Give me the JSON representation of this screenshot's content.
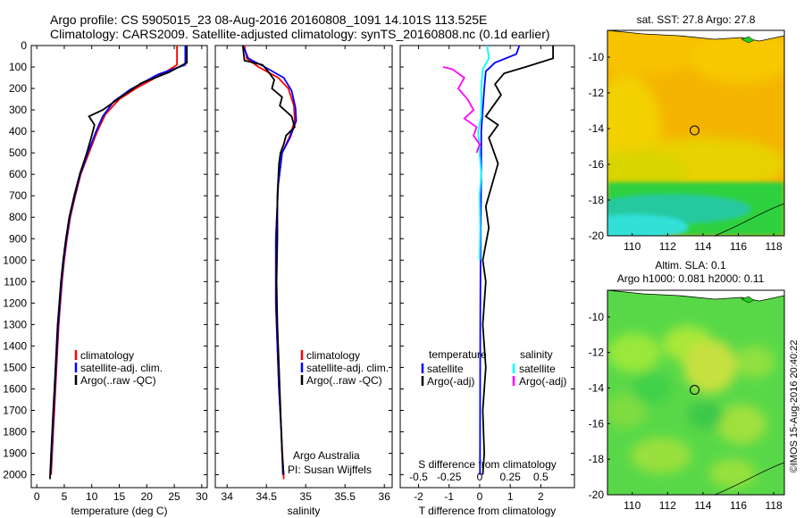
{
  "header": {
    "title_line1": "Argo profile: CS 5905015_23 08-Aug-2016 20160808_1091 14.101S 113.525E",
    "title_line2": "Climatology: CARS2009. Satellite-adjusted climatology: synTS_20160808.nc (0.1d earlier)"
  },
  "credit": "©IMOS 15-Aug-2016 20:40:22",
  "colors": {
    "climatology": "#ff0000",
    "satellite": "#0000ff",
    "argo": "#000000",
    "sal_satellite": "#00ffff",
    "sal_argo": "#ff00ff"
  },
  "chart_data": [
    {
      "id": "temperature",
      "type": "line",
      "xlabel": "temperature (deg C)",
      "ylabel": "",
      "xlim": [
        -1,
        31
      ],
      "ylim": [
        2060,
        0
      ],
      "xticks": [
        0,
        5,
        10,
        15,
        20,
        25,
        30
      ],
      "yticks": [
        0,
        100,
        200,
        300,
        400,
        500,
        600,
        700,
        800,
        900,
        1000,
        1100,
        1200,
        1300,
        1400,
        1500,
        1600,
        1700,
        1800,
        1900,
        2000
      ],
      "legend": {
        "placement": "center-left",
        "entries": [
          "climatology",
          "satellite-adj. clim.",
          "Argo(..raw -QC)"
        ]
      },
      "series": [
        {
          "name": "climatology",
          "color": "#ff0000",
          "points": [
            [
              25.5,
              0
            ],
            [
              25.5,
              90
            ],
            [
              23,
              130
            ],
            [
              18,
              200
            ],
            [
              15,
              250
            ],
            [
              12.5,
              320
            ],
            [
              11,
              400
            ],
            [
              9.5,
              500
            ],
            [
              8,
              600
            ],
            [
              7,
              700
            ],
            [
              6.1,
              800
            ],
            [
              5.5,
              900
            ],
            [
              5,
              1000
            ],
            [
              4.6,
              1100
            ],
            [
              4.3,
              1200
            ],
            [
              4,
              1300
            ],
            [
              3.8,
              1400
            ],
            [
              3.6,
              1500
            ],
            [
              3.4,
              1600
            ],
            [
              3.2,
              1700
            ],
            [
              3,
              1800
            ],
            [
              2.8,
              1900
            ],
            [
              2.6,
              2000
            ]
          ]
        },
        {
          "name": "satellite-adj. clim.",
          "color": "#0000ff",
          "points": [
            [
              27,
              0
            ],
            [
              27,
              90
            ],
            [
              22,
              135
            ],
            [
              17,
              205
            ],
            [
              14,
              260
            ],
            [
              12,
              330
            ],
            [
              10.8,
              400
            ],
            [
              9.3,
              500
            ],
            [
              7.9,
              600
            ],
            [
              6.9,
              700
            ],
            [
              6,
              800
            ],
            [
              5.4,
              900
            ],
            [
              4.9,
              1000
            ],
            [
              4.5,
              1100
            ],
            [
              4.2,
              1200
            ],
            [
              3.9,
              1300
            ],
            [
              3.7,
              1400
            ],
            [
              3.5,
              1500
            ],
            [
              3.3,
              1600
            ],
            [
              3.1,
              1700
            ],
            [
              2.9,
              1800
            ],
            [
              2.7,
              1900
            ],
            [
              2.5,
              2000
            ]
          ]
        },
        {
          "name": "Argo(..raw -QC)",
          "color": "#000000",
          "points": [
            [
              27.3,
              0
            ],
            [
              27.3,
              80
            ],
            [
              24,
              125
            ],
            [
              19,
              175
            ],
            [
              15,
              245
            ],
            [
              12,
              300
            ],
            [
              9.5,
              330
            ],
            [
              10.5,
              370
            ],
            [
              10,
              420
            ],
            [
              9.1,
              500
            ],
            [
              7.8,
              600
            ],
            [
              6.8,
              700
            ],
            [
              5.9,
              800
            ],
            [
              5.3,
              900
            ],
            [
              4.8,
              1000
            ],
            [
              4.4,
              1100
            ],
            [
              4.1,
              1200
            ],
            [
              3.8,
              1300
            ],
            [
              3.6,
              1400
            ],
            [
              3.4,
              1500
            ],
            [
              3.2,
              1600
            ],
            [
              3,
              1700
            ],
            [
              2.8,
              1800
            ],
            [
              2.6,
              1900
            ],
            [
              2.4,
              2020
            ]
          ]
        }
      ]
    },
    {
      "id": "salinity",
      "type": "line",
      "xlabel": "salinity",
      "ylabel": "",
      "xlim": [
        33.85,
        36.1
      ],
      "ylim": [
        2060,
        0
      ],
      "xticks": [
        34,
        34.5,
        35,
        35.5,
        36
      ],
      "legend": {
        "placement": "center-right",
        "entries": [
          "climatology",
          "satellite-adj. clim.",
          "Argo(..raw -QC)"
        ]
      },
      "annotation": [
        "Argo Australia",
        "PI: Susan Wijffels"
      ],
      "series": [
        {
          "name": "climatology",
          "color": "#ff0000",
          "points": [
            [
              34.22,
              0
            ],
            [
              34.25,
              60
            ],
            [
              34.4,
              100
            ],
            [
              34.65,
              150
            ],
            [
              34.78,
              200
            ],
            [
              34.85,
              280
            ],
            [
              34.86,
              350
            ],
            [
              34.8,
              420
            ],
            [
              34.7,
              500
            ],
            [
              34.65,
              650
            ],
            [
              34.62,
              900
            ],
            [
              34.62,
              1200
            ],
            [
              34.64,
              1400
            ],
            [
              34.66,
              1600
            ],
            [
              34.69,
              1800
            ],
            [
              34.72,
              2020
            ]
          ]
        },
        {
          "name": "satellite-adj. clim.",
          "color": "#0000ff",
          "points": [
            [
              34.2,
              0
            ],
            [
              34.27,
              60
            ],
            [
              34.48,
              100
            ],
            [
              34.72,
              150
            ],
            [
              34.82,
              210
            ],
            [
              34.87,
              290
            ],
            [
              34.88,
              350
            ],
            [
              34.8,
              430
            ],
            [
              34.7,
              500
            ],
            [
              34.65,
              650
            ],
            [
              34.62,
              900
            ],
            [
              34.62,
              1200
            ],
            [
              34.64,
              1400
            ],
            [
              34.66,
              1600
            ],
            [
              34.69,
              1800
            ],
            [
              34.71,
              2000
            ]
          ]
        },
        {
          "name": "Argo(..raw -QC)",
          "color": "#000000",
          "points": [
            [
              34.2,
              0
            ],
            [
              34.22,
              70
            ],
            [
              34.45,
              90
            ],
            [
              34.52,
              120
            ],
            [
              34.6,
              160
            ],
            [
              34.57,
              200
            ],
            [
              34.7,
              240
            ],
            [
              34.67,
              280
            ],
            [
              34.82,
              330
            ],
            [
              34.86,
              380
            ],
            [
              34.75,
              420
            ],
            [
              34.72,
              460
            ],
            [
              34.68,
              500
            ],
            [
              34.66,
              550
            ],
            [
              34.64,
              700
            ],
            [
              34.64,
              900
            ],
            [
              34.63,
              1100
            ],
            [
              34.64,
              1300
            ],
            [
              34.66,
              1500
            ],
            [
              34.68,
              1700
            ],
            [
              34.7,
              1900
            ],
            [
              34.72,
              2000
            ]
          ]
        }
      ]
    },
    {
      "id": "difference",
      "type": "line",
      "xlabel": "T difference from climatology",
      "x2label": "S difference from climatology",
      "ylabel": "",
      "xlim": [
        -2.6,
        3.1
      ],
      "ylim": [
        2060,
        0
      ],
      "xticks": [
        -2,
        -1,
        0,
        1,
        2
      ],
      "x2ticks": [
        "-0.5",
        "-0.25",
        "0",
        "0.25",
        "0.5"
      ],
      "x2ticks_pos": [
        -2,
        -1,
        0,
        1,
        2
      ],
      "legend": {
        "placement": "center",
        "temperature_header": "temperature",
        "salinity_header": "salinity",
        "entries_t": [
          "satellite",
          "Argo(-adj)"
        ],
        "entries_s": [
          "satellite",
          "Argo(-adj)"
        ]
      },
      "series": [
        {
          "name": "temperature satellite",
          "color": "#0000ff",
          "points": [
            [
              1.3,
              0
            ],
            [
              1.2,
              40
            ],
            [
              0.5,
              80
            ],
            [
              0.2,
              120
            ],
            [
              0.15,
              200
            ],
            [
              0.1,
              300
            ],
            [
              0.05,
              400
            ],
            [
              0.05,
              600
            ],
            [
              0.03,
              900
            ],
            [
              0.02,
              1300
            ],
            [
              0.01,
              2000
            ]
          ]
        },
        {
          "name": "temperature Argo(-adj)",
          "color": "#000000",
          "points": [
            [
              2.4,
              0
            ],
            [
              2.4,
              60
            ],
            [
              1.5,
              100
            ],
            [
              0.8,
              130
            ],
            [
              0.5,
              180
            ],
            [
              0.7,
              230
            ],
            [
              0.4,
              290
            ],
            [
              0.2,
              330
            ],
            [
              0.6,
              370
            ],
            [
              0.3,
              430
            ],
            [
              0.6,
              550
            ],
            [
              0.4,
              650
            ],
            [
              0.2,
              750
            ],
            [
              0.3,
              850
            ],
            [
              0.1,
              1000
            ],
            [
              0.2,
              1100
            ],
            [
              0.1,
              1300
            ],
            [
              0.2,
              1500
            ],
            [
              0.1,
              1700
            ],
            [
              0.15,
              1900
            ],
            [
              0.1,
              2000
            ]
          ]
        },
        {
          "name": "salinity satellite",
          "color": "#00ffff",
          "points": [
            [
              0.25,
              0
            ],
            [
              0.3,
              60
            ],
            [
              0.1,
              110
            ],
            [
              0.05,
              200
            ],
            [
              0.05,
              330
            ],
            [
              -0.05,
              400
            ],
            [
              0.0,
              500
            ],
            [
              0.05,
              600
            ],
            [
              0.0,
              700
            ],
            [
              0.02,
              850
            ],
            [
              0.0,
              1000
            ]
          ]
        },
        {
          "name": "salinity Argo(-adj)",
          "color": "#ff00ff",
          "points": [
            [
              -1.2,
              100
            ],
            [
              -0.9,
              110
            ],
            [
              -0.5,
              150
            ],
            [
              -0.7,
              200
            ],
            [
              -0.4,
              250
            ],
            [
              -0.2,
              300
            ],
            [
              -0.5,
              340
            ],
            [
              -0.1,
              380
            ],
            [
              -0.2,
              420
            ],
            [
              0.0,
              460
            ],
            [
              -0.1,
              500
            ]
          ]
        }
      ]
    },
    {
      "id": "sst-map",
      "type": "heatmap",
      "title": "sat. SST: 27.8 Argo: 27.8",
      "xlim": [
        108.6,
        118.6
      ],
      "ylim": [
        -20,
        -8.5
      ],
      "xticks": [
        110,
        112,
        114,
        116,
        118
      ],
      "yticks": [
        -10,
        -12,
        -14,
        -16,
        -18,
        -20
      ],
      "marker": [
        113.525,
        -14.101
      ]
    },
    {
      "id": "sla-map",
      "type": "heatmap",
      "title_line1": "Altim. SLA: 0.1",
      "title_line2": "Argo h1000: 0.081 h2000: 0.11",
      "xlim": [
        108.6,
        118.6
      ],
      "ylim": [
        -20,
        -8.5
      ],
      "xticks": [
        110,
        112,
        114,
        116,
        118
      ],
      "yticks": [
        -10,
        -12,
        -14,
        -16,
        -18,
        -20
      ],
      "marker": [
        113.525,
        -14.101
      ]
    }
  ]
}
